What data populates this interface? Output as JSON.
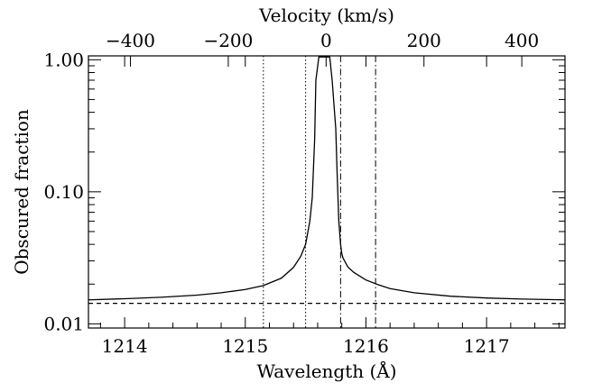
{
  "chart_data": {
    "type": "line",
    "xlabel": "Wavelength (Å)",
    "x2label": "Velocity (km/s)",
    "ylabel": "Obscured fraction",
    "xlim": [
      1213.7,
      1217.65
    ],
    "ylim_log": [
      0.0093,
      1.07
    ],
    "yscale": "log",
    "x_ticks": [
      1214,
      1215,
      1216,
      1217
    ],
    "x_tick_labels": [
      "1214",
      "1215",
      "1216",
      "1217"
    ],
    "x2_ref_wavelength": 1215.67,
    "x2_ticks": [
      -400,
      -200,
      0,
      200,
      400
    ],
    "x2_tick_labels": [
      "−400",
      "−200",
      "0",
      "200",
      "400"
    ],
    "y_ticks": [
      0.01,
      0.1,
      1.0
    ],
    "y_tick_labels": [
      "0.01",
      "0.10",
      "1.00"
    ],
    "series": [
      {
        "name": "obscured fraction",
        "style": "solid",
        "x": [
          1213.7,
          1214.0,
          1214.3,
          1214.6,
          1214.8,
          1215.0,
          1215.15,
          1215.3,
          1215.4,
          1215.46,
          1215.5,
          1215.535,
          1215.555,
          1215.575,
          1215.585,
          1215.61,
          1215.7,
          1215.72,
          1215.75,
          1215.76,
          1215.775,
          1215.79,
          1215.8,
          1215.81,
          1215.85,
          1215.9,
          1216.0,
          1216.1,
          1216.2,
          1216.4,
          1216.7,
          1217.0,
          1217.3,
          1217.65
        ],
        "y": [
          0.0152,
          0.0155,
          0.0159,
          0.0165,
          0.0172,
          0.0182,
          0.0195,
          0.0222,
          0.0268,
          0.0325,
          0.04,
          0.06,
          0.09,
          0.25,
          0.7,
          1.05,
          1.05,
          0.7,
          0.3,
          0.15,
          0.06,
          0.04,
          0.034,
          0.0315,
          0.027,
          0.0245,
          0.0215,
          0.0198,
          0.0185,
          0.0172,
          0.0162,
          0.0157,
          0.0154,
          0.0152
        ]
      },
      {
        "name": "baseline",
        "style": "dashed",
        "x": [
          1213.7,
          1217.65
        ],
        "y": [
          0.0143,
          0.0143
        ]
      }
    ],
    "vlines": [
      {
        "x": 1215.15,
        "style": "dotted"
      },
      {
        "x": 1215.5,
        "style": "dotted"
      },
      {
        "x": 1215.79,
        "style": "dashdot"
      },
      {
        "x": 1216.08,
        "style": "dashdot"
      }
    ]
  }
}
